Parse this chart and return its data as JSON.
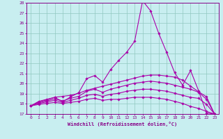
{
  "title": "",
  "xlabel": "Windchill (Refroidissement éolien,°C)",
  "ylabel": "",
  "background_color": "#c8eef0",
  "grid_color": "#90c8c0",
  "line_color": "#aa00aa",
  "xlim": [
    -0.5,
    23.5
  ],
  "ylim": [
    17,
    28
  ],
  "yticks": [
    17,
    18,
    19,
    20,
    21,
    22,
    23,
    24,
    25,
    26,
    27,
    28
  ],
  "xticks": [
    0,
    1,
    2,
    3,
    4,
    5,
    6,
    7,
    8,
    9,
    10,
    11,
    12,
    13,
    14,
    15,
    16,
    17,
    18,
    19,
    20,
    21,
    22,
    23
  ],
  "lines": [
    {
      "x": [
        0,
        1,
        2,
        3,
        4,
        5,
        6,
        7,
        8,
        9,
        10,
        11,
        12,
        13,
        14,
        15,
        16,
        17,
        18,
        19,
        20,
        21,
        22,
        23
      ],
      "y": [
        17.8,
        18.25,
        18.45,
        18.65,
        18.2,
        18.7,
        19.1,
        20.5,
        20.8,
        20.15,
        21.4,
        22.3,
        23.1,
        24.2,
        28.2,
        27.2,
        25.0,
        23.1,
        21.1,
        19.85,
        21.3,
        19.3,
        17.1,
        17.0
      ]
    },
    {
      "x": [
        0,
        1,
        2,
        3,
        4,
        5,
        6,
        7,
        8,
        9,
        10,
        11,
        12,
        13,
        14,
        15,
        16,
        17,
        18,
        19,
        20,
        21,
        22,
        23
      ],
      "y": [
        17.8,
        18.2,
        18.4,
        18.65,
        18.75,
        18.85,
        19.05,
        19.35,
        19.55,
        19.75,
        19.95,
        20.15,
        20.35,
        20.55,
        20.75,
        20.85,
        20.85,
        20.75,
        20.65,
        20.35,
        19.75,
        19.2,
        18.7,
        17.0
      ]
    },
    {
      "x": [
        0,
        1,
        2,
        3,
        4,
        5,
        6,
        7,
        8,
        9,
        10,
        11,
        12,
        13,
        14,
        15,
        16,
        17,
        18,
        19,
        20,
        21,
        22,
        23
      ],
      "y": [
        17.8,
        18.1,
        18.3,
        18.5,
        18.3,
        18.55,
        18.75,
        19.25,
        19.45,
        19.15,
        19.45,
        19.65,
        19.85,
        20.05,
        20.15,
        20.25,
        20.15,
        20.05,
        19.85,
        19.65,
        19.45,
        19.15,
        18.45,
        17.0
      ]
    },
    {
      "x": [
        0,
        1,
        2,
        3,
        4,
        5,
        6,
        7,
        8,
        9,
        10,
        11,
        12,
        13,
        14,
        15,
        16,
        17,
        18,
        19,
        20,
        21,
        22,
        23
      ],
      "y": [
        17.8,
        18.05,
        18.2,
        18.35,
        18.15,
        18.35,
        18.55,
        18.85,
        18.95,
        18.75,
        18.95,
        19.05,
        19.25,
        19.35,
        19.45,
        19.45,
        19.35,
        19.25,
        19.05,
        18.85,
        18.65,
        18.55,
        17.95,
        17.0
      ]
    },
    {
      "x": [
        0,
        1,
        2,
        3,
        4,
        5,
        6,
        7,
        8,
        9,
        10,
        11,
        12,
        13,
        14,
        15,
        16,
        17,
        18,
        19,
        20,
        21,
        22,
        23
      ],
      "y": [
        17.8,
        17.95,
        18.05,
        18.15,
        18.05,
        18.15,
        18.25,
        18.45,
        18.55,
        18.35,
        18.45,
        18.45,
        18.55,
        18.65,
        18.65,
        18.65,
        18.55,
        18.45,
        18.25,
        18.05,
        17.75,
        17.55,
        17.25,
        17.0
      ]
    }
  ]
}
